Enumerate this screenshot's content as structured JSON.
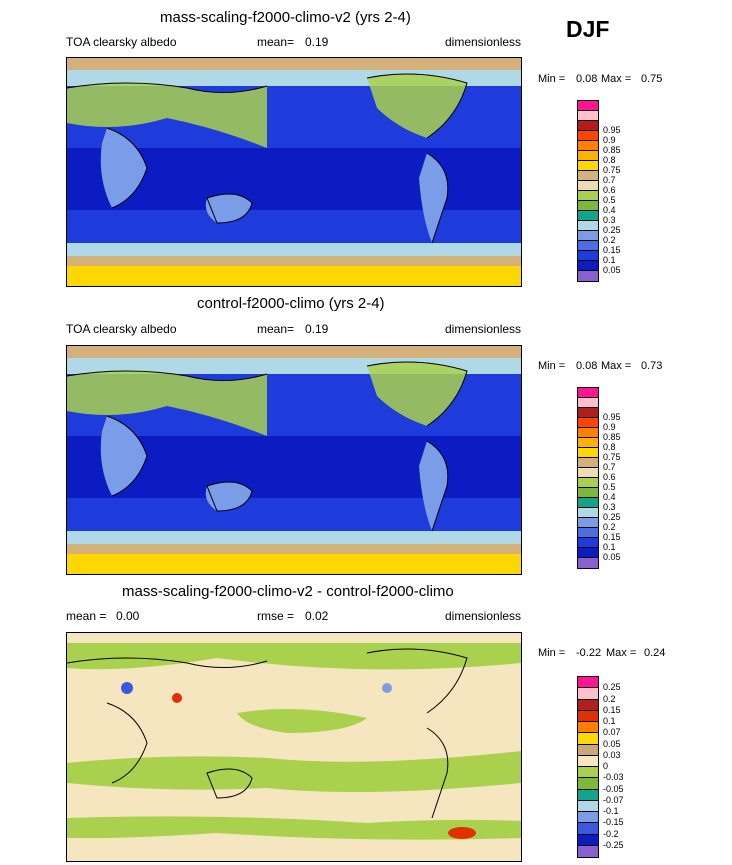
{
  "season": "DJF",
  "colors": {
    "abs_scale": [
      "#8a5fd1",
      "#0d1bc2",
      "#1e3cdb",
      "#4a6fe0",
      "#7b9ce6",
      "#b0d9e8",
      "#12a58c",
      "#7db83a",
      "#a9d14d",
      "#efdcb0",
      "#d4b07a",
      "#ffd700",
      "#ffb000",
      "#ff8000",
      "#ff4500",
      "#b01e1e",
      "#ffc0cb",
      "#ff1493"
    ],
    "diff_scale": [
      "#8a5fd1",
      "#0d1bc2",
      "#3a59e0",
      "#7b9ce6",
      "#b0d9e8",
      "#12a58c",
      "#7db83a",
      "#a9d14d",
      "#f5e6c0",
      "#c9a878",
      "#ffd700",
      "#ff8000",
      "#e03000",
      "#b01e1e",
      "#ffc0cb",
      "#ff1493"
    ]
  },
  "panels": [
    {
      "title": "mass-scaling-f2000-climo-v2 (yrs 2-4)",
      "left_label": "TOA clearsky albedo",
      "mean_label": "mean=",
      "mean_value": "0.19",
      "units": "dimensionless",
      "min_label": "Min =",
      "min_value": "0.08",
      "max_label": "Max =",
      "max_value": "0.75"
    },
    {
      "title": "control-f2000-climo (yrs 2-4)",
      "left_label": "TOA clearsky albedo",
      "mean_label": "mean=",
      "mean_value": "0.19",
      "units": "dimensionless",
      "min_label": "Min =",
      "min_value": "0.08",
      "max_label": "Max =",
      "max_value": "0.73"
    },
    {
      "title": "mass-scaling-f2000-climo-v2 - control-f2000-climo",
      "left_label": "mean =",
      "left_value": "0.00",
      "mid_label": "rmse =",
      "mid_value": "0.02",
      "units": "dimensionless",
      "min_label": "Min =",
      "min_value": "-0.22",
      "max_label": "Max =",
      "max_value": "0.24"
    }
  ],
  "chart_data": [
    {
      "type": "heatmap",
      "title": "mass-scaling-f2000-climo-v2 (yrs 2-4)",
      "variable": "TOA clearsky albedo",
      "units": "dimensionless",
      "mean": 0.19,
      "min": 0.08,
      "max": 0.75,
      "colorbar_levels": [
        "0.95",
        "0.9",
        "0.85",
        "0.8",
        "0.75",
        "0.7",
        "0.6",
        "0.5",
        "0.4",
        "0.3",
        "0.25",
        "0.2",
        "0.15",
        "0.1",
        "0.05"
      ]
    },
    {
      "type": "heatmap",
      "title": "control-f2000-climo (yrs 2-4)",
      "variable": "TOA clearsky albedo",
      "units": "dimensionless",
      "mean": 0.19,
      "min": 0.08,
      "max": 0.73,
      "colorbar_levels": [
        "0.95",
        "0.9",
        "0.85",
        "0.8",
        "0.75",
        "0.7",
        "0.6",
        "0.5",
        "0.4",
        "0.3",
        "0.25",
        "0.2",
        "0.15",
        "0.1",
        "0.05"
      ]
    },
    {
      "type": "heatmap",
      "title": "mass-scaling-f2000-climo-v2 - control-f2000-climo",
      "units": "dimensionless",
      "mean": 0.0,
      "rmse": 0.02,
      "min": -0.22,
      "max": 0.24,
      "colorbar_levels": [
        "0.25",
        "0.2",
        "0.15",
        "0.1",
        "0.07",
        "0.05",
        "0.03",
        "0",
        "-0.03",
        "-0.05",
        "-0.07",
        "-0.1",
        "-0.15",
        "-0.2",
        "-0.25"
      ]
    }
  ]
}
